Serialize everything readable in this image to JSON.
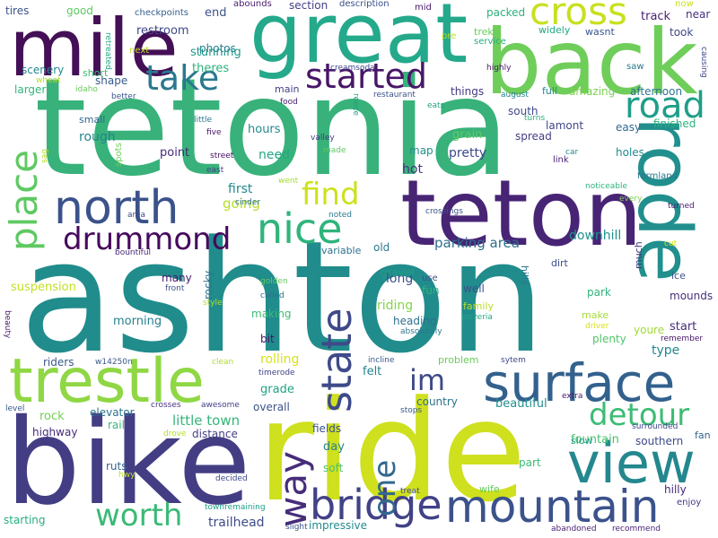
{
  "words": [
    {
      "text": "ashton",
      "color": "#218c8c"
    },
    {
      "text": "tetonia",
      "color": "#38b27a"
    },
    {
      "text": "ride",
      "color": "#cfe01e"
    },
    {
      "text": "bike",
      "color": "#433e84"
    },
    {
      "text": "great",
      "color": "#25a98b"
    },
    {
      "text": "back",
      "color": "#6fcd5a"
    },
    {
      "text": "mile",
      "color": "#440f56"
    },
    {
      "text": "teton",
      "color": "#482475"
    },
    {
      "text": "rode",
      "color": "#218f8d"
    },
    {
      "text": "trestle",
      "color": "#8fd744"
    },
    {
      "text": "surface",
      "color": "#33618d"
    },
    {
      "text": "view",
      "color": "#24878e"
    },
    {
      "text": "mountain",
      "color": "#3b528b"
    },
    {
      "text": "bridge",
      "color": "#414287"
    },
    {
      "text": "north",
      "color": "#3b528b"
    },
    {
      "text": "state",
      "color": "#3e4a89"
    },
    {
      "text": "way",
      "color": "#472c7a"
    },
    {
      "text": "place",
      "color": "#5ec962"
    },
    {
      "text": "nice",
      "color": "#2fb47c"
    },
    {
      "text": "cross",
      "color": "#c8e020"
    },
    {
      "text": "take",
      "color": "#2a788e"
    },
    {
      "text": "started",
      "color": "#481668"
    },
    {
      "text": "road",
      "color": "#1f9e89"
    },
    {
      "text": "drummond",
      "color": "#46085c"
    },
    {
      "text": "find",
      "color": "#cde11d"
    },
    {
      "text": "detour",
      "color": "#3dbc74"
    },
    {
      "text": "worth",
      "color": "#3aba76"
    },
    {
      "text": "one",
      "color": "#31688e"
    },
    {
      "text": "im",
      "color": "#3e4989"
    },
    {
      "text": "parking area",
      "color": "#2d708e"
    },
    {
      "text": "little town",
      "color": "#35b779"
    },
    {
      "text": "going",
      "color": "#b5de2b"
    },
    {
      "text": "first",
      "color": "#23898e"
    },
    {
      "text": "need",
      "color": "#22a785"
    },
    {
      "text": "rough",
      "color": "#25848e"
    },
    {
      "text": "hours",
      "color": "#238a8d"
    },
    {
      "text": "point",
      "color": "#482878"
    },
    {
      "text": "hot",
      "color": "#46337e"
    },
    {
      "text": "pretty",
      "color": "#3f4788"
    },
    {
      "text": "map",
      "color": "#21908d"
    },
    {
      "text": "grain",
      "color": "#5ec962"
    },
    {
      "text": "restroom",
      "color": "#3f4788"
    },
    {
      "text": "stunning",
      "color": "#1f998a"
    },
    {
      "text": "photos",
      "color": "#26828e"
    },
    {
      "text": "theres",
      "color": "#2db27d"
    },
    {
      "text": "end",
      "color": "#3b528b"
    },
    {
      "text": "shape",
      "color": "#38598c"
    },
    {
      "text": "short",
      "color": "#3dbc74"
    },
    {
      "text": "scenery",
      "color": "#24878e"
    },
    {
      "text": "larger",
      "color": "#31b57b"
    },
    {
      "text": "small",
      "color": "#32658e"
    },
    {
      "text": "riding",
      "color": "#84d44b"
    },
    {
      "text": "long",
      "color": "#3b528b"
    },
    {
      "text": "heading",
      "color": "#2c728e"
    },
    {
      "text": "old",
      "color": "#2a778e"
    },
    {
      "text": "gravel",
      "color": "#1f9f88"
    },
    {
      "text": "variable",
      "color": "#2c728e"
    },
    {
      "text": "dirt",
      "color": "#3e4c8a"
    },
    {
      "text": "downhill",
      "color": "#20928c"
    },
    {
      "text": "fun",
      "color": "#31b57b"
    },
    {
      "text": "use",
      "color": "#3a548c"
    },
    {
      "text": "well",
      "color": "#3b518b"
    },
    {
      "text": "family",
      "color": "#b8de29"
    },
    {
      "text": "park",
      "color": "#2fb47c"
    },
    {
      "text": "make",
      "color": "#a5db36"
    },
    {
      "text": "plenty",
      "color": "#50c46a"
    },
    {
      "text": "start",
      "color": "#472d7b"
    },
    {
      "text": "type",
      "color": "#24868e"
    },
    {
      "text": "youre",
      "color": "#a2da37"
    },
    {
      "text": "fountain",
      "color": "#4ac16d"
    },
    {
      "text": "beautiful",
      "color": "#218f8d"
    },
    {
      "text": "part",
      "color": "#3bbb75"
    },
    {
      "text": "slow",
      "color": "#1fa088"
    },
    {
      "text": "southern",
      "color": "#3e4989"
    },
    {
      "text": "mounds",
      "color": "#472f7d"
    },
    {
      "text": "ice",
      "color": "#3a548c"
    },
    {
      "text": "much",
      "color": "#46327e"
    },
    {
      "text": "hills",
      "color": "#2a778e"
    },
    {
      "text": "morning",
      "color": "#26828e"
    },
    {
      "text": "making",
      "color": "#3dbc74"
    },
    {
      "text": "many",
      "color": "#481a6c"
    },
    {
      "text": "rocky",
      "color": "#2d708e"
    },
    {
      "text": "suspension",
      "color": "#c2df23"
    },
    {
      "text": "bit",
      "color": "#471365"
    },
    {
      "text": "rolling",
      "color": "#d8e219"
    },
    {
      "text": "felt",
      "color": "#26828e"
    },
    {
      "text": "grade",
      "color": "#20a386"
    },
    {
      "text": "overall",
      "color": "#3b528b"
    },
    {
      "text": "country",
      "color": "#2d718e"
    },
    {
      "text": "problem",
      "color": "#6ccd5a"
    },
    {
      "text": "fields",
      "color": "#3b528b"
    },
    {
      "text": "day",
      "color": "#25838e"
    },
    {
      "text": "soft",
      "color": "#4ac16d"
    },
    {
      "text": "distance",
      "color": "#433e85"
    },
    {
      "text": "elevator",
      "color": "#2c738e"
    },
    {
      "text": "rail",
      "color": "#36b878"
    },
    {
      "text": "rock",
      "color": "#75d054"
    },
    {
      "text": "riders",
      "color": "#38598c"
    },
    {
      "text": "highway",
      "color": "#472c7a"
    },
    {
      "text": "ruts",
      "color": "#31678e"
    },
    {
      "text": "starting",
      "color": "#26ad81"
    },
    {
      "text": "trailhead",
      "color": "#3e4c8a"
    },
    {
      "text": "impressive",
      "color": "#23898e"
    },
    {
      "text": "wife",
      "color": "#62cb5f"
    },
    {
      "text": "hilly",
      "color": "#482979"
    },
    {
      "text": "fan",
      "color": "#33628d"
    },
    {
      "text": "enjoy",
      "color": "#453781"
    },
    {
      "text": "good",
      "color": "#5ec962"
    },
    {
      "text": "tires",
      "color": "#3b528b"
    },
    {
      "text": "checkpoints",
      "color": "#355f8d"
    },
    {
      "text": "abounds",
      "color": "#481b6d"
    },
    {
      "text": "section",
      "color": "#424086"
    },
    {
      "text": "description",
      "color": "#3c4f8a"
    },
    {
      "text": "mid",
      "color": "#48186a"
    },
    {
      "text": "packed",
      "color": "#2db27d"
    },
    {
      "text": "now",
      "color": "#cde11d"
    },
    {
      "text": "near",
      "color": "#46307e"
    },
    {
      "text": "track",
      "color": "#481f70"
    },
    {
      "text": "took",
      "color": "#404688"
    },
    {
      "text": "widely",
      "color": "#22a884"
    },
    {
      "text": "wasnt",
      "color": "#3a548c"
    },
    {
      "text": "trek",
      "color": "#67cc5c"
    },
    {
      "text": "service",
      "color": "#26ad81"
    },
    {
      "text": "pre",
      "color": "#bddf26"
    },
    {
      "text": "causing",
      "color": "#3f4788"
    },
    {
      "text": "saw",
      "color": "#29798e"
    },
    {
      "text": "retreated",
      "color": "#22a785"
    },
    {
      "text": "next",
      "color": "#bddf26"
    },
    {
      "text": "wheat",
      "color": "#b5de2b"
    },
    {
      "text": "idaho",
      "color": "#67cc5c"
    },
    {
      "text": "creamsoda",
      "color": "#3f4788"
    },
    {
      "text": "highly",
      "color": "#481668"
    },
    {
      "text": "august",
      "color": "#26828e"
    },
    {
      "text": "full",
      "color": "#24878e"
    },
    {
      "text": "amazing",
      "color": "#7ad151"
    },
    {
      "text": "afternoon",
      "color": "#2c738e"
    },
    {
      "text": "things",
      "color": "#453882"
    },
    {
      "text": "main",
      "color": "#424086"
    },
    {
      "text": "restaurant",
      "color": "#3b528b"
    },
    {
      "text": "better",
      "color": "#39568c"
    },
    {
      "text": "food",
      "color": "#481f70"
    },
    {
      "text": "reece",
      "color": "#1f9f88"
    },
    {
      "text": "eats",
      "color": "#21a685"
    },
    {
      "text": "south",
      "color": "#3e4989"
    },
    {
      "text": "turns",
      "color": "#29af7f"
    },
    {
      "text": "lamont",
      "color": "#3f4788"
    },
    {
      "text": "easy",
      "color": "#31678e"
    },
    {
      "text": "finished",
      "color": "#2db27d"
    },
    {
      "text": "little",
      "color": "#2a788e"
    },
    {
      "text": "five",
      "color": "#48186a"
    },
    {
      "text": "street",
      "color": "#470e61"
    },
    {
      "text": "east",
      "color": "#424186"
    },
    {
      "text": "valley",
      "color": "#453781"
    },
    {
      "text": "made",
      "color": "#5ec962"
    },
    {
      "text": "car",
      "color": "#23898e"
    },
    {
      "text": "spread",
      "color": "#433e85"
    },
    {
      "text": "link",
      "color": "#482475"
    },
    {
      "text": "holes",
      "color": "#238a8d"
    },
    {
      "text": "farmland",
      "color": "#2a788e"
    },
    {
      "text": "noticeable",
      "color": "#2fb47c"
    },
    {
      "text": "every",
      "color": "#7ad151"
    },
    {
      "text": "turned",
      "color": "#48186a"
    },
    {
      "text": "crossings",
      "color": "#39568c"
    },
    {
      "text": "went",
      "color": "#a5db36"
    },
    {
      "text": "cinder",
      "color": "#2c728e"
    },
    {
      "text": "noted",
      "color": "#29798e"
    },
    {
      "text": "area",
      "color": "#3e4989"
    },
    {
      "text": "spots",
      "color": "#6ece58"
    },
    {
      "text": "sag",
      "color": "#b5de2b"
    },
    {
      "text": "bountiful",
      "color": "#482878"
    },
    {
      "text": "front",
      "color": "#3a538b"
    },
    {
      "text": "style",
      "color": "#b5de2b"
    },
    {
      "text": "golden",
      "color": "#63cb5f"
    },
    {
      "text": "called",
      "color": "#2c728e"
    },
    {
      "text": "absolutely",
      "color": "#2a788e"
    },
    {
      "text": "pizzeria",
      "color": "#21a685"
    },
    {
      "text": "driver",
      "color": "#d8e219"
    },
    {
      "text": "remember",
      "color": "#481668"
    },
    {
      "text": "cut",
      "color": "#d2e21b"
    },
    {
      "text": "beauty",
      "color": "#481a6c"
    },
    {
      "text": "level",
      "color": "#38598c"
    },
    {
      "text": "w14250n",
      "color": "#39568c"
    },
    {
      "text": "clean",
      "color": "#addc30"
    },
    {
      "text": "timerode",
      "color": "#414487"
    },
    {
      "text": "incline",
      "color": "#38598c"
    },
    {
      "text": "sytem",
      "color": "#3f4788"
    },
    {
      "text": "extra",
      "color": "#48186a"
    },
    {
      "text": "surrounded",
      "color": "#3e4989"
    },
    {
      "text": "crosses",
      "color": "#453781"
    },
    {
      "text": "awesome",
      "color": "#433e85"
    },
    {
      "text": "stops",
      "color": "#38598c"
    },
    {
      "text": "drove",
      "color": "#b5de2b"
    },
    {
      "text": "hwy",
      "color": "#bddf26"
    },
    {
      "text": "decided",
      "color": "#3e4a89"
    },
    {
      "text": "townremaining",
      "color": "#1fa187"
    },
    {
      "text": "slight",
      "color": "#3b528b"
    },
    {
      "text": "treat",
      "color": "#3f4788"
    },
    {
      "text": "abandoned",
      "color": "#481f70"
    },
    {
      "text": "recommend",
      "color": "#482475"
    }
  ]
}
